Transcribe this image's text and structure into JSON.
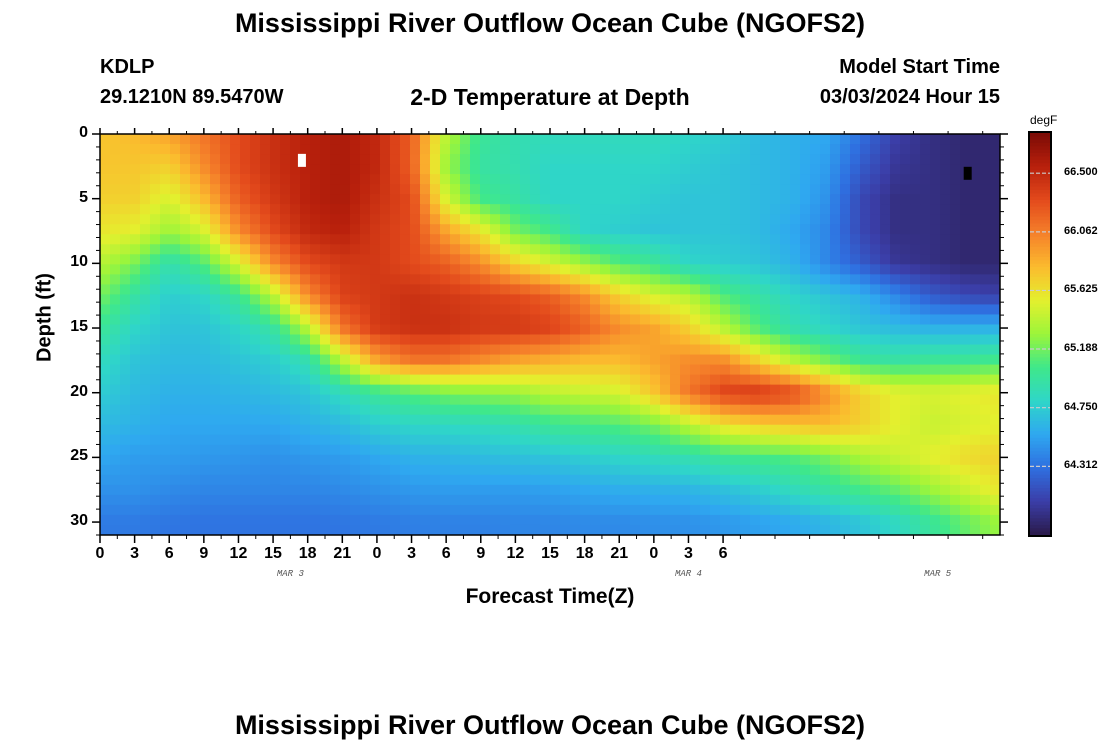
{
  "header": {
    "title": "Mississippi River Outflow Ocean Cube (NGOFS2)",
    "station_id": "KDLP",
    "location": "29.1210N  89.5470W",
    "plot_title": "2-D Temperature at Depth",
    "model_start_label": "Model Start Time",
    "model_start_value": "03/03/2024 Hour 15"
  },
  "footer": {
    "title": "Mississippi River Outflow Ocean Cube (NGOFS2)"
  },
  "colors": {
    "marker_white": "#ffffff",
    "marker_black": "#000000",
    "grid": "#cccccc"
  },
  "chart_data": {
    "type": "heatmap",
    "title": "2-D Temperature at Depth",
    "xlabel": "Forecast Time(Z)",
    "ylabel": "Depth (ft)",
    "x_unit": "hours from 03/03 00Z",
    "xlim": [
      0,
      78
    ],
    "ylim": [
      31,
      0
    ],
    "x_ticks": [
      {
        "value": 0,
        "label": "0"
      },
      {
        "value": 3,
        "label": "3"
      },
      {
        "value": 6,
        "label": "6"
      },
      {
        "value": 9,
        "label": "9"
      },
      {
        "value": 12,
        "label": "12"
      },
      {
        "value": 15,
        "label": "15"
      },
      {
        "value": 18,
        "label": "18"
      },
      {
        "value": 21,
        "label": "21"
      },
      {
        "value": 24,
        "label": "0"
      },
      {
        "value": 27,
        "label": "3"
      },
      {
        "value": 30,
        "label": "6"
      },
      {
        "value": 33,
        "label": "9"
      },
      {
        "value": 36,
        "label": "12"
      },
      {
        "value": 39,
        "label": "15"
      },
      {
        "value": 42,
        "label": "18"
      },
      {
        "value": 45,
        "label": "21"
      },
      {
        "value": 48,
        "label": "0"
      },
      {
        "value": 51,
        "label": "3"
      },
      {
        "value": 54,
        "label": "6"
      }
    ],
    "day_labels": [
      {
        "value": 16.5,
        "label": "MAR 3"
      },
      {
        "value": 51,
        "label": "MAR 4"
      },
      {
        "value": 72.6,
        "label": "MAR 5"
      }
    ],
    "y_ticks": [
      0,
      5,
      10,
      15,
      20,
      25,
      30
    ],
    "colorbar": {
      "unit": "degF",
      "min": 63.8,
      "max": 66.8,
      "ticks": [
        "66.500",
        "66.062",
        "65.625",
        "65.188",
        "64.750",
        "64.312"
      ],
      "stops": [
        "#2a1a4a",
        "#3b3ea8",
        "#2f6fe0",
        "#2fa8f0",
        "#2fd6c8",
        "#3fe88a",
        "#9cf53a",
        "#e4f02e",
        "#fbbb2e",
        "#f5802a",
        "#e34a1c",
        "#b8200c",
        "#7a0a05"
      ]
    },
    "grid": {
      "depths_ft": [
        0,
        2.5,
        5,
        7.5,
        10,
        12.5,
        15,
        17.5,
        20,
        22.5,
        25,
        27.5,
        30
      ],
      "times_h": [
        0,
        3,
        6,
        9,
        12,
        15,
        18,
        21,
        24,
        27,
        30,
        33,
        36,
        39,
        42,
        45,
        48,
        51,
        54,
        57,
        60,
        63,
        66,
        69,
        72,
        75,
        78
      ],
      "values_degF": [
        [
          65.75,
          65.8,
          65.9,
          66.1,
          66.3,
          66.45,
          66.55,
          66.6,
          66.5,
          66.2,
          65.4,
          65.0,
          64.9,
          64.85,
          64.85,
          64.85,
          64.85,
          64.8,
          64.75,
          64.65,
          64.6,
          64.55,
          64.3,
          64.05,
          63.95,
          63.9,
          63.9
        ],
        [
          65.75,
          65.75,
          65.7,
          66.0,
          66.3,
          66.45,
          66.55,
          66.6,
          66.5,
          66.2,
          65.3,
          64.95,
          64.9,
          64.8,
          64.8,
          64.8,
          64.8,
          64.75,
          64.7,
          64.65,
          64.6,
          64.5,
          64.2,
          64.0,
          63.95,
          63.9,
          63.9
        ],
        [
          65.7,
          65.7,
          65.5,
          65.8,
          66.2,
          66.4,
          66.55,
          66.6,
          66.45,
          66.3,
          65.5,
          65.05,
          64.95,
          64.8,
          64.8,
          64.8,
          64.75,
          64.7,
          64.7,
          64.65,
          64.6,
          64.45,
          64.1,
          63.95,
          63.95,
          63.9,
          63.9
        ],
        [
          65.6,
          65.55,
          65.3,
          65.5,
          66.0,
          66.3,
          66.5,
          66.55,
          66.4,
          66.3,
          65.9,
          65.6,
          65.2,
          65.05,
          64.8,
          64.75,
          64.7,
          64.7,
          64.7,
          64.65,
          64.55,
          64.4,
          64.1,
          63.95,
          63.95,
          63.9,
          63.9
        ],
        [
          65.4,
          65.2,
          64.9,
          65.1,
          65.5,
          66.0,
          66.3,
          66.4,
          66.4,
          66.3,
          66.2,
          66.0,
          65.7,
          65.5,
          65.3,
          65.1,
          65.0,
          64.8,
          64.75,
          64.7,
          64.6,
          64.4,
          64.2,
          64.0,
          63.95,
          63.9,
          63.9
        ],
        [
          65.2,
          64.95,
          64.75,
          64.8,
          65.0,
          65.4,
          66.0,
          66.35,
          66.4,
          66.45,
          66.4,
          66.35,
          66.3,
          66.2,
          66.0,
          65.7,
          65.5,
          65.4,
          65.1,
          64.95,
          64.8,
          64.7,
          64.6,
          64.4,
          64.2,
          64.1,
          64.05
        ],
        [
          65.0,
          64.8,
          64.7,
          64.7,
          64.8,
          64.95,
          65.4,
          66.1,
          66.4,
          66.45,
          66.45,
          66.4,
          66.4,
          66.35,
          66.2,
          66.0,
          65.9,
          65.7,
          65.4,
          65.1,
          64.9,
          64.8,
          64.7,
          64.65,
          64.6,
          64.6,
          64.6
        ],
        [
          64.85,
          64.7,
          64.65,
          64.65,
          64.7,
          64.75,
          64.9,
          65.4,
          65.9,
          66.1,
          66.1,
          66.0,
          65.9,
          65.85,
          65.8,
          65.8,
          65.9,
          66.0,
          66.0,
          65.7,
          65.4,
          65.2,
          65.0,
          64.95,
          65.0,
          65.0,
          65.05
        ],
        [
          64.75,
          64.65,
          64.6,
          64.6,
          64.62,
          64.65,
          64.7,
          64.85,
          65.0,
          65.1,
          65.2,
          65.25,
          65.3,
          65.4,
          65.45,
          65.5,
          65.75,
          66.1,
          66.35,
          66.4,
          66.3,
          66.0,
          65.7,
          65.55,
          65.5,
          65.55,
          65.6
        ],
        [
          64.65,
          64.6,
          64.55,
          64.55,
          64.55,
          64.55,
          64.6,
          64.65,
          64.75,
          64.8,
          64.82,
          64.85,
          64.9,
          65.0,
          65.05,
          65.1,
          65.2,
          65.4,
          65.6,
          65.7,
          65.75,
          65.8,
          65.7,
          65.55,
          65.45,
          65.5,
          65.55
        ],
        [
          64.55,
          64.5,
          64.5,
          64.48,
          64.47,
          64.45,
          64.48,
          64.5,
          64.55,
          64.6,
          64.62,
          64.65,
          64.68,
          64.7,
          64.75,
          64.8,
          64.85,
          64.9,
          65.0,
          65.05,
          65.1,
          65.2,
          65.35,
          65.45,
          65.55,
          65.65,
          65.7
        ],
        [
          64.45,
          64.45,
          64.42,
          64.4,
          64.4,
          64.4,
          64.4,
          64.42,
          64.45,
          64.48,
          64.5,
          64.5,
          64.5,
          64.52,
          64.55,
          64.58,
          64.6,
          64.62,
          64.68,
          64.75,
          64.85,
          64.95,
          65.05,
          65.15,
          65.3,
          65.45,
          65.6
        ],
        [
          64.35,
          64.35,
          64.33,
          64.32,
          64.32,
          64.32,
          64.32,
          64.33,
          64.35,
          64.37,
          64.38,
          64.38,
          64.4,
          64.4,
          64.42,
          64.42,
          64.44,
          64.45,
          64.48,
          64.52,
          64.56,
          64.62,
          64.7,
          64.82,
          64.98,
          65.15,
          65.3
        ]
      ],
      "markers": [
        {
          "time_h": 17.5,
          "depth_ft": 2,
          "color": "white"
        },
        {
          "time_h": 75.2,
          "depth_ft": 3,
          "color": "black"
        }
      ]
    }
  }
}
